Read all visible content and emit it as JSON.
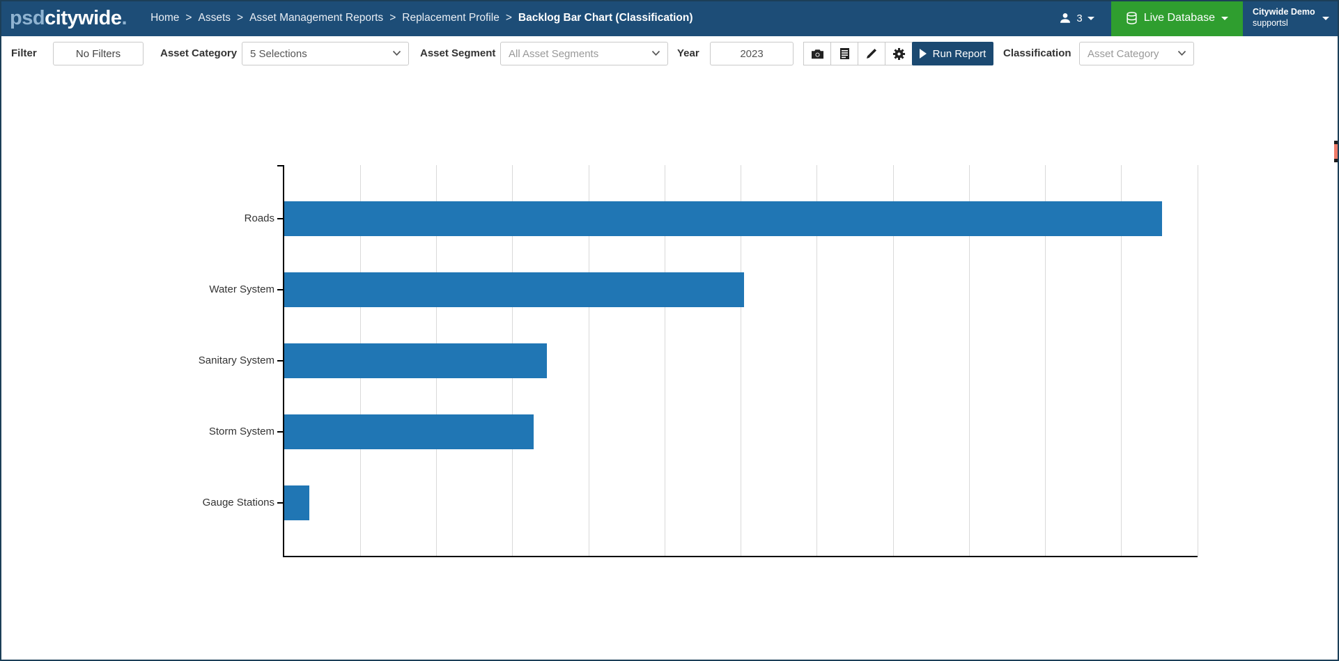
{
  "navbar": {
    "logo": {
      "prefix": "psd",
      "main": "citywide",
      "suffix": "."
    },
    "separator": ">",
    "breadcrumbs": [
      {
        "label": "Home"
      },
      {
        "label": "Assets"
      },
      {
        "label": "Asset Management Reports"
      },
      {
        "label": "Replacement Profile"
      },
      {
        "label": "Backlog Bar Chart (Classification)"
      }
    ],
    "user_count": "3",
    "live_database_label": "Live Database",
    "account": {
      "line1": "Citywide Demo",
      "line2": "supportsl"
    }
  },
  "toolbar": {
    "filter_label": "Filter",
    "no_filters_label": "No Filters",
    "asset_category_label": "Asset Category",
    "asset_category_value": "5 Selections",
    "asset_segment_label": "Asset Segment",
    "asset_segment_placeholder": "All Asset Segments",
    "year_label": "Year",
    "year_value": "2023",
    "icon_buttons": [
      "camera-icon",
      "report-icon",
      "brush-icon",
      "gear-icon"
    ],
    "run_report_label": "Run Report",
    "classification_label": "Classification",
    "classification_value": "Asset Category"
  },
  "chart_data": {
    "type": "bar",
    "orientation": "horizontal",
    "title": "",
    "xlabel": "",
    "ylabel": "",
    "categories": [
      "Roads",
      "Water System",
      "Sanitary System",
      "Storm System",
      "Gauge Stations"
    ],
    "values": [
      11.53,
      6.04,
      3.45,
      3.28,
      0.33
    ],
    "xlim": [
      0,
      12
    ],
    "gridline_step": 1,
    "x_tick_labels_visible": false,
    "grid": true,
    "bar_color": "#2076b4"
  },
  "colors": {
    "navbar_bg": "#1d4d77",
    "green_button": "#2f9e2f",
    "run_button": "#1b4971",
    "bar_blue": "#2076b4",
    "scroll_thumb": "#ee7b68"
  }
}
